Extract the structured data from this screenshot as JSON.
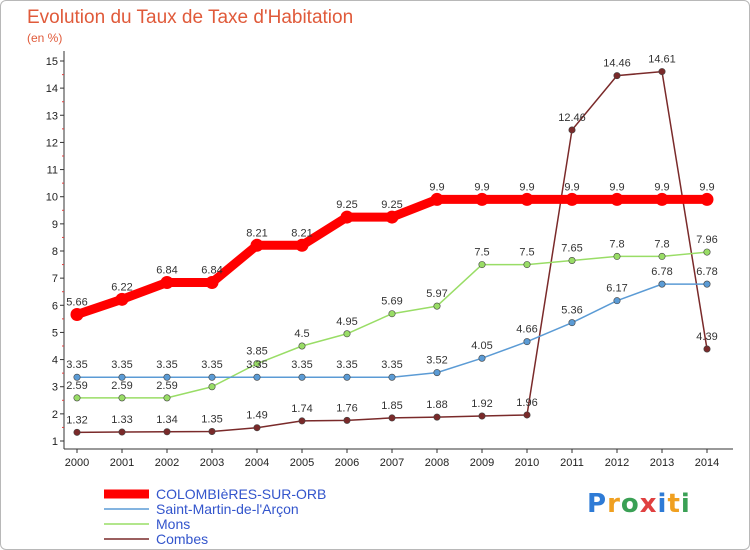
{
  "chart_data": {
    "type": "line",
    "title": "Evolution du Taux de Taxe d'Habitation",
    "unit_label": "(en %)",
    "ylim": [
      1,
      15
    ],
    "y_ticks": [
      1,
      2,
      3,
      4,
      5,
      6,
      7,
      8,
      9,
      10,
      11,
      12,
      13,
      14,
      15
    ],
    "x": [
      "2000",
      "2001",
      "2002",
      "2003",
      "2004",
      "2005",
      "2006",
      "2007",
      "2008",
      "2009",
      "2010",
      "2011",
      "2012",
      "2013",
      "2014"
    ],
    "grid": false,
    "legend_position": "bottom-left",
    "series": [
      {
        "name": "COLOMBIèRES-SUR-ORB",
        "color": "#ff0000",
        "values": [
          5.66,
          6.22,
          6.84,
          6.84,
          8.21,
          8.21,
          9.25,
          9.25,
          9.9,
          9.9,
          9.9,
          9.9,
          9.9,
          9.9,
          9.9
        ],
        "labels": [
          "5.66",
          "6.22",
          "6.84",
          "6.84",
          "8.21",
          "8.21",
          "9.25",
          "9.25",
          "9.9",
          "9.9",
          "9.9",
          "9.9",
          "9.9",
          "9.9",
          "9.9"
        ]
      },
      {
        "name": "Saint-Martin-de-l'Arçon",
        "color": "#5b9bd5",
        "values": [
          3.35,
          3.35,
          3.35,
          3.35,
          3.35,
          3.35,
          3.35,
          3.35,
          3.52,
          4.05,
          4.66,
          5.36,
          6.17,
          6.78,
          6.78
        ],
        "labels": [
          "3.35",
          "3.35",
          "3.35",
          "3.35",
          "3.35",
          "3.35",
          "3.35",
          "3.35",
          "3.52",
          "4.05",
          "4.66",
          "5.36",
          "6.17",
          "6.78",
          "6.78"
        ]
      },
      {
        "name": "Mons",
        "color": "#99dd66",
        "values": [
          2.59,
          2.59,
          2.59,
          3.0,
          3.85,
          4.5,
          4.95,
          5.69,
          5.97,
          7.5,
          7.5,
          7.65,
          7.8,
          7.8,
          7.96
        ],
        "labels": [
          "2.59",
          "2.59",
          "2.59",
          "",
          "3.85",
          "4.5",
          "4.95",
          "5.69",
          "5.97",
          "7.5",
          "7.5",
          "7.65",
          "7.8",
          "7.8",
          "7.96"
        ]
      },
      {
        "name": "Combes",
        "color": "#7a2a2a",
        "values": [
          1.32,
          1.33,
          1.34,
          1.35,
          1.49,
          1.74,
          1.76,
          1.85,
          1.88,
          1.92,
          1.96,
          12.46,
          14.46,
          14.61,
          4.39
        ],
        "labels": [
          "1.32",
          "1.33",
          "1.34",
          "1.35",
          "1.49",
          "1.74",
          "1.76",
          "1.85",
          "1.88",
          "1.92",
          "1.96",
          "12.46",
          "14.46",
          "14.61",
          "4.39"
        ]
      }
    ]
  },
  "logo": {
    "letters": [
      "P",
      "r",
      "o",
      "x",
      "i",
      "t",
      "i"
    ],
    "colors": [
      "#2e7bd6",
      "#f0a020",
      "#3aa055",
      "#e04040",
      "#2e7bd6",
      "#f0a020",
      "#3aa055"
    ]
  }
}
